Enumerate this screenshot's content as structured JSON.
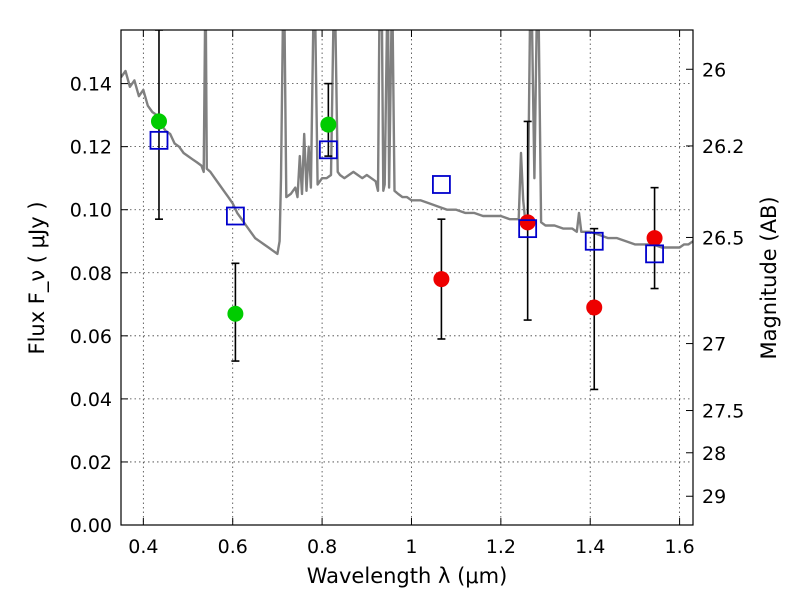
{
  "chart_data": {
    "type": "scatter",
    "xlabel": "Wavelength  λ (μm)",
    "ylabel": "Flux  F_ν  ( μJy )",
    "ylabel_right": "Magnitude (AB)",
    "xlim": [
      0.35,
      1.63
    ],
    "ylim": [
      0.0,
      0.157
    ],
    "grid": true,
    "x_ticks": [
      {
        "value": 0.4,
        "label": "0.4"
      },
      {
        "value": 0.6,
        "label": "0.6"
      },
      {
        "value": 0.8,
        "label": "0.8"
      },
      {
        "value": 1.0,
        "label": "1"
      },
      {
        "value": 1.2,
        "label": "1.2"
      },
      {
        "value": 1.4,
        "label": "1.4"
      },
      {
        "value": 1.6,
        "label": "1.6"
      }
    ],
    "y_ticks": [
      {
        "value": 0.0,
        "label": "0.00"
      },
      {
        "value": 0.02,
        "label": "0.02"
      },
      {
        "value": 0.04,
        "label": "0.04"
      },
      {
        "value": 0.06,
        "label": "0.06"
      },
      {
        "value": 0.08,
        "label": "0.08"
      },
      {
        "value": 0.1,
        "label": "0.10"
      },
      {
        "value": 0.12,
        "label": "0.12"
      },
      {
        "value": 0.14,
        "label": "0.14"
      }
    ],
    "right_ticks": [
      {
        "mag": 26,
        "label": "26"
      },
      {
        "mag": 26.2,
        "label": "26.2"
      },
      {
        "mag": 26.5,
        "label": "26.5"
      },
      {
        "mag": 27,
        "label": "27"
      },
      {
        "mag": 27.5,
        "label": "27.5"
      },
      {
        "mag": 28,
        "label": "28"
      },
      {
        "mag": 29,
        "label": "29"
      }
    ],
    "series": [
      {
        "marker": "line",
        "color": "#808080",
        "points": [
          [
            0.35,
            0.142
          ],
          [
            0.36,
            0.144
          ],
          [
            0.37,
            0.139
          ],
          [
            0.38,
            0.141
          ],
          [
            0.39,
            0.136
          ],
          [
            0.4,
            0.138
          ],
          [
            0.41,
            0.133
          ],
          [
            0.42,
            0.131
          ],
          [
            0.43,
            0.13
          ],
          [
            0.44,
            0.127
          ],
          [
            0.45,
            0.125
          ],
          [
            0.46,
            0.124
          ],
          [
            0.47,
            0.121
          ],
          [
            0.48,
            0.12
          ],
          [
            0.49,
            0.118
          ],
          [
            0.5,
            0.117
          ],
          [
            0.51,
            0.116
          ],
          [
            0.52,
            0.115
          ],
          [
            0.53,
            0.114
          ],
          [
            0.535,
            0.112
          ],
          [
            0.538,
            0.157
          ],
          [
            0.54,
            0.157
          ],
          [
            0.542,
            0.113
          ],
          [
            0.55,
            0.112
          ],
          [
            0.56,
            0.11
          ],
          [
            0.57,
            0.108
          ],
          [
            0.58,
            0.106
          ],
          [
            0.59,
            0.104
          ],
          [
            0.6,
            0.102
          ],
          [
            0.61,
            0.099
          ],
          [
            0.62,
            0.097
          ],
          [
            0.63,
            0.095
          ],
          [
            0.64,
            0.093
          ],
          [
            0.65,
            0.091
          ],
          [
            0.66,
            0.09
          ],
          [
            0.67,
            0.089
          ],
          [
            0.68,
            0.088
          ],
          [
            0.69,
            0.087
          ],
          [
            0.7,
            0.086
          ],
          [
            0.705,
            0.09
          ],
          [
            0.708,
            0.11
          ],
          [
            0.712,
            0.157
          ],
          [
            0.716,
            0.157
          ],
          [
            0.72,
            0.104
          ],
          [
            0.73,
            0.105
          ],
          [
            0.74,
            0.107
          ],
          [
            0.745,
            0.104
          ],
          [
            0.75,
            0.117
          ],
          [
            0.755,
            0.105
          ],
          [
            0.76,
            0.124
          ],
          [
            0.765,
            0.106
          ],
          [
            0.77,
            0.12
          ],
          [
            0.775,
            0.107
          ],
          [
            0.78,
            0.157
          ],
          [
            0.785,
            0.157
          ],
          [
            0.79,
            0.108
          ],
          [
            0.8,
            0.11
          ],
          [
            0.81,
            0.11
          ],
          [
            0.82,
            0.111
          ],
          [
            0.825,
            0.157
          ],
          [
            0.83,
            0.157
          ],
          [
            0.835,
            0.112
          ],
          [
            0.84,
            0.111
          ],
          [
            0.85,
            0.11
          ],
          [
            0.86,
            0.111
          ],
          [
            0.87,
            0.112
          ],
          [
            0.88,
            0.111
          ],
          [
            0.89,
            0.11
          ],
          [
            0.9,
            0.111
          ],
          [
            0.91,
            0.11
          ],
          [
            0.92,
            0.109
          ],
          [
            0.925,
            0.106
          ],
          [
            0.928,
            0.157
          ],
          [
            0.931,
            0.157
          ],
          [
            0.934,
            0.157
          ],
          [
            0.937,
            0.106
          ],
          [
            0.94,
            0.108
          ],
          [
            0.945,
            0.157
          ],
          [
            0.948,
            0.157
          ],
          [
            0.95,
            0.107
          ],
          [
            0.955,
            0.157
          ],
          [
            0.958,
            0.157
          ],
          [
            0.962,
            0.106
          ],
          [
            0.97,
            0.105
          ],
          [
            0.98,
            0.104
          ],
          [
            0.99,
            0.104
          ],
          [
            1.0,
            0.103
          ],
          [
            1.02,
            0.103
          ],
          [
            1.04,
            0.102
          ],
          [
            1.06,
            0.101
          ],
          [
            1.08,
            0.1
          ],
          [
            1.1,
            0.1
          ],
          [
            1.12,
            0.099
          ],
          [
            1.14,
            0.099
          ],
          [
            1.16,
            0.098
          ],
          [
            1.18,
            0.098
          ],
          [
            1.2,
            0.098
          ],
          [
            1.22,
            0.097
          ],
          [
            1.24,
            0.097
          ],
          [
            1.245,
            0.118
          ],
          [
            1.25,
            0.103
          ],
          [
            1.255,
            0.096
          ],
          [
            1.26,
            0.096
          ],
          [
            1.265,
            0.157
          ],
          [
            1.27,
            0.157
          ],
          [
            1.275,
            0.11
          ],
          [
            1.28,
            0.157
          ],
          [
            1.285,
            0.157
          ],
          [
            1.29,
            0.096
          ],
          [
            1.3,
            0.095
          ],
          [
            1.32,
            0.095
          ],
          [
            1.34,
            0.094
          ],
          [
            1.36,
            0.094
          ],
          [
            1.37,
            0.093
          ],
          [
            1.375,
            0.099
          ],
          [
            1.38,
            0.093
          ],
          [
            1.4,
            0.093
          ],
          [
            1.42,
            0.092
          ],
          [
            1.44,
            0.091
          ],
          [
            1.46,
            0.091
          ],
          [
            1.48,
            0.09
          ],
          [
            1.5,
            0.089
          ],
          [
            1.52,
            0.089
          ],
          [
            1.54,
            0.089
          ],
          [
            1.56,
            0.088
          ],
          [
            1.58,
            0.088
          ],
          [
            1.6,
            0.088
          ],
          [
            1.61,
            0.089
          ],
          [
            1.62,
            0.089
          ],
          [
            1.63,
            0.09
          ]
        ]
      },
      {
        "marker": "filled-circle",
        "color": "#00cc00",
        "points": [
          {
            "x": 0.435,
            "y": 0.128
          },
          {
            "x": 0.606,
            "y": 0.067,
            "err_low": 0.052,
            "err_high": 0.083
          },
          {
            "x": 0.814,
            "y": 0.127,
            "err_low": 0.117,
            "err_high": 0.14
          }
        ]
      },
      {
        "marker": "filled-circle",
        "color": "#ee0000",
        "points": [
          {
            "x": 1.067,
            "y": 0.078,
            "err_low": 0.059,
            "err_high": 0.097
          },
          {
            "x": 1.26,
            "y": 0.096,
            "err_low": 0.065,
            "err_high": 0.128
          },
          {
            "x": 1.409,
            "y": 0.069,
            "err_low": 0.043,
            "err_high": 0.094
          },
          {
            "x": 1.544,
            "y": 0.091,
            "err_low": 0.075,
            "err_high": 0.107
          }
        ]
      },
      {
        "marker": "open-square",
        "color": "#0000cc",
        "points": [
          {
            "x": 0.435,
            "y": 0.122
          },
          {
            "x": 0.606,
            "y": 0.098
          },
          {
            "x": 0.814,
            "y": 0.119
          },
          {
            "x": 1.067,
            "y": 0.108
          },
          {
            "x": 1.26,
            "y": 0.094
          },
          {
            "x": 1.409,
            "y": 0.09
          },
          {
            "x": 1.544,
            "y": 0.086
          }
        ]
      }
    ],
    "errorbar_only": [
      {
        "x": 0.435,
        "err_low": 0.097,
        "err_high": 0.157
      }
    ]
  }
}
